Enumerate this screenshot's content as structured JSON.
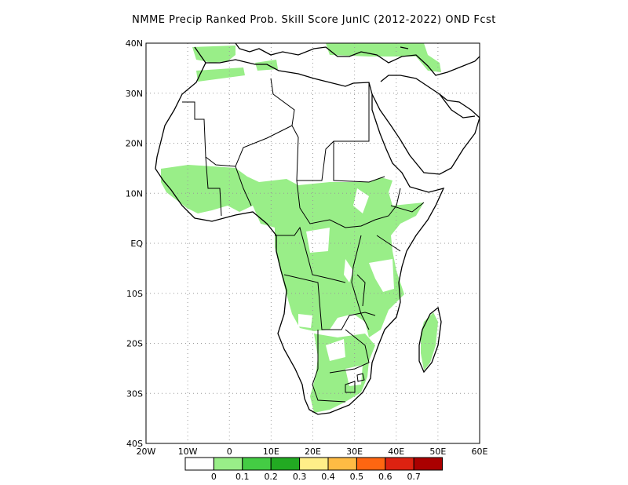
{
  "title": "NMME Precip Ranked Prob. Skill Score JunIC (2012-2022) OND Fcst",
  "map": {
    "lon_range": [
      -20,
      60
    ],
    "lat_range": [
      -40,
      40
    ],
    "lat_ticks": [
      {
        "value": 40,
        "label": "40N"
      },
      {
        "value": 30,
        "label": "30N"
      },
      {
        "value": 20,
        "label": "20N"
      },
      {
        "value": 10,
        "label": "10N"
      },
      {
        "value": 0,
        "label": "EQ"
      },
      {
        "value": -10,
        "label": "10S"
      },
      {
        "value": -20,
        "label": "20S"
      },
      {
        "value": -30,
        "label": "30S"
      },
      {
        "value": -40,
        "label": "40S"
      }
    ],
    "lon_ticks": [
      {
        "value": -20,
        "label": "20W"
      },
      {
        "value": -10,
        "label": "10W"
      },
      {
        "value": 0,
        "label": "0"
      },
      {
        "value": 10,
        "label": "10E"
      },
      {
        "value": 20,
        "label": "20E"
      },
      {
        "value": 30,
        "label": "30E"
      },
      {
        "value": 40,
        "label": "40E"
      },
      {
        "value": 50,
        "label": "50E"
      },
      {
        "value": 60,
        "label": "60E"
      }
    ],
    "shaded_color": "#99ee88",
    "grid_color": "#999999",
    "coast_color": "#000000"
  },
  "colorbar": {
    "colors": [
      "#ffffff",
      "#99ee88",
      "#44cc44",
      "#22aa22",
      "#ffee88",
      "#ffbb44",
      "#ff6611",
      "#dd2211",
      "#aa0000"
    ],
    "labels": [
      "0",
      "0.1",
      "0.2",
      "0.3",
      "0.4",
      "0.5",
      "0.6",
      "0.7"
    ]
  }
}
